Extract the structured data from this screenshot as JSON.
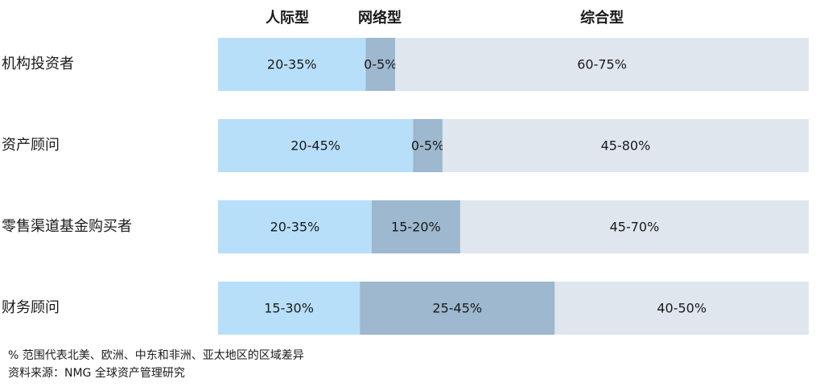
{
  "chart_data": {
    "type": "bar",
    "orientation": "horizontal",
    "stacked": true,
    "series": [
      {
        "name": "人际型",
        "color": "#b8dff9"
      },
      {
        "name": "网络型",
        "color": "#9db8cf"
      },
      {
        "name": "综合型",
        "color": "#dfe6ee"
      }
    ],
    "categories": [
      "机构投资者",
      "资产顾问",
      "零售渠道基金购买者",
      "财务顾问"
    ],
    "segment_fractions": [
      [
        0.25,
        0.05,
        0.7
      ],
      [
        0.33,
        0.05,
        0.62
      ],
      [
        0.26,
        0.15,
        0.59
      ],
      [
        0.24,
        0.33,
        0.43
      ]
    ],
    "segment_labels": [
      [
        "20-35%",
        "0-5%",
        "60-75%"
      ],
      [
        "20-45%",
        "0-5%",
        "45-80%"
      ],
      [
        "20-35%",
        "15-20%",
        "45-70%"
      ],
      [
        "15-30%",
        "25-45%",
        "40-50%"
      ]
    ],
    "grid": false,
    "legend": "top"
  },
  "footnotes": [
    "% 范围代表北美、欧洲、中东和非洲、亚太地区的区域差异",
    "资料来源：NMG 全球资产管理研究"
  ]
}
